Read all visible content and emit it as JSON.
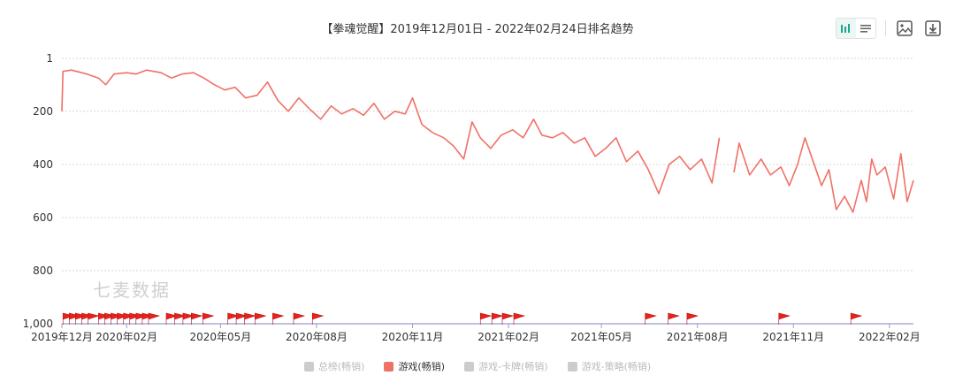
{
  "header": {
    "title": "【拳魂觉醒】2019年12月01日 - 2022年02月24日排名趋势",
    "icons": [
      "bar-chart-icon",
      "list-icon",
      "image-download-icon",
      "download-icon"
    ]
  },
  "watermark": "七麦数据",
  "legend": [
    {
      "label": "总榜(畅销)",
      "active": false
    },
    {
      "label": "游戏(畅销)",
      "active": true
    },
    {
      "label": "游戏-卡牌(畅销)",
      "active": false
    },
    {
      "label": "游戏-策略(畅销)",
      "active": false
    }
  ],
  "chart_data": {
    "type": "line",
    "title": "【拳魂觉醒】2019年12月01日 - 2022年02月24日排名趋势",
    "y_axis": {
      "reversed": true,
      "min": 1,
      "max": 1000,
      "ticks": [
        1,
        200,
        400,
        600,
        800,
        1000
      ],
      "tick_labels": [
        "1",
        "200",
        "400",
        "600",
        "800",
        "1,000"
      ]
    },
    "x_axis": {
      "ticks": [
        "2019-12-01",
        "2020-02-01",
        "2020-05-01",
        "2020-08-01",
        "2020-11-01",
        "2021-02-01",
        "2021-05-01",
        "2021-08-01",
        "2021-11-01",
        "2022-02-01"
      ],
      "tick_labels": [
        "2019年12月",
        "2020年02月",
        "2020年05月",
        "2020年08月",
        "2020年11月",
        "2021年02月",
        "2021年05月",
        "2021年08月",
        "2021年11月",
        "2022年02月"
      ],
      "range": [
        "2019-12-01",
        "2022-02-24"
      ]
    },
    "grid": true,
    "color": "#f07167",
    "series": [
      {
        "name": "游戏(畅销)",
        "points": [
          [
            "2019-12-01",
            200
          ],
          [
            "2019-12-02",
            50
          ],
          [
            "2019-12-10",
            45
          ],
          [
            "2019-12-25",
            60
          ],
          [
            "2020-01-05",
            75
          ],
          [
            "2020-01-12",
            100
          ],
          [
            "2020-01-20",
            60
          ],
          [
            "2020-02-01",
            55
          ],
          [
            "2020-02-10",
            60
          ],
          [
            "2020-02-20",
            45
          ],
          [
            "2020-03-05",
            55
          ],
          [
            "2020-03-15",
            75
          ],
          [
            "2020-03-25",
            60
          ],
          [
            "2020-04-05",
            55
          ],
          [
            "2020-04-15",
            75
          ],
          [
            "2020-04-25",
            100
          ],
          [
            "2020-05-05",
            120
          ],
          [
            "2020-05-15",
            110
          ],
          [
            "2020-05-25",
            150
          ],
          [
            "2020-06-05",
            140
          ],
          [
            "2020-06-15",
            90
          ],
          [
            "2020-06-25",
            160
          ],
          [
            "2020-07-05",
            200
          ],
          [
            "2020-07-15",
            150
          ],
          [
            "2020-07-25",
            190
          ],
          [
            "2020-08-05",
            230
          ],
          [
            "2020-08-15",
            180
          ],
          [
            "2020-08-25",
            210
          ],
          [
            "2020-09-05",
            190
          ],
          [
            "2020-09-15",
            215
          ],
          [
            "2020-09-25",
            170
          ],
          [
            "2020-10-05",
            230
          ],
          [
            "2020-10-15",
            200
          ],
          [
            "2020-10-25",
            210
          ],
          [
            "2020-11-01",
            150
          ],
          [
            "2020-11-10",
            250
          ],
          [
            "2020-11-20",
            280
          ],
          [
            "2020-12-01",
            300
          ],
          [
            "2020-12-10",
            330
          ],
          [
            "2020-12-20",
            380
          ],
          [
            "2020-12-28",
            240
          ],
          [
            "2021-01-05",
            300
          ],
          [
            "2021-01-15",
            340
          ],
          [
            "2021-01-25",
            290
          ],
          [
            "2021-02-05",
            270
          ],
          [
            "2021-02-15",
            300
          ],
          [
            "2021-02-25",
            230
          ],
          [
            "2021-03-05",
            290
          ],
          [
            "2021-03-15",
            300
          ],
          [
            "2021-03-25",
            280
          ],
          [
            "2021-04-05",
            320
          ],
          [
            "2021-04-15",
            300
          ],
          [
            "2021-04-25",
            370
          ],
          [
            "2021-05-05",
            340
          ],
          [
            "2021-05-15",
            300
          ],
          [
            "2021-05-25",
            390
          ],
          [
            "2021-06-05",
            350
          ],
          [
            "2021-06-15",
            420
          ],
          [
            "2021-06-25",
            510
          ],
          [
            "2021-07-05",
            400
          ],
          [
            "2021-07-15",
            370
          ],
          [
            "2021-07-25",
            420
          ],
          [
            "2021-08-05",
            380
          ],
          [
            "2021-08-15",
            470
          ],
          [
            "2021-08-22",
            300
          ]
        ]
      },
      {
        "name": "游戏(畅销)",
        "points": [
          [
            "2021-09-05",
            430
          ],
          [
            "2021-09-10",
            320
          ],
          [
            "2021-09-20",
            440
          ],
          [
            "2021-10-01",
            380
          ],
          [
            "2021-10-10",
            440
          ],
          [
            "2021-10-20",
            410
          ],
          [
            "2021-10-28",
            480
          ],
          [
            "2021-11-05",
            400
          ],
          [
            "2021-11-12",
            300
          ],
          [
            "2021-11-20",
            390
          ],
          [
            "2021-11-28",
            480
          ],
          [
            "2021-12-05",
            420
          ],
          [
            "2021-12-12",
            570
          ],
          [
            "2021-12-20",
            520
          ],
          [
            "2021-12-28",
            580
          ],
          [
            "2022-01-05",
            460
          ],
          [
            "2022-01-10",
            540
          ],
          [
            "2022-01-15",
            380
          ],
          [
            "2022-01-20",
            440
          ],
          [
            "2022-01-28",
            410
          ],
          [
            "2022-02-05",
            530
          ],
          [
            "2022-02-12",
            360
          ],
          [
            "2022-02-18",
            540
          ],
          [
            "2022-02-24",
            460
          ]
        ]
      }
    ],
    "event_flag_dates": [
      "2019-12-02",
      "2019-12-08",
      "2019-12-14",
      "2019-12-20",
      "2019-12-26",
      "2020-01-05",
      "2020-01-11",
      "2020-01-17",
      "2020-01-23",
      "2020-01-29",
      "2020-02-04",
      "2020-02-10",
      "2020-02-16",
      "2020-02-22",
      "2020-03-10",
      "2020-03-18",
      "2020-03-26",
      "2020-04-03",
      "2020-04-14",
      "2020-05-08",
      "2020-05-16",
      "2020-05-24",
      "2020-06-03",
      "2020-06-20",
      "2020-07-10",
      "2020-07-28",
      "2021-01-05",
      "2021-01-16",
      "2021-01-26",
      "2021-02-06",
      "2021-06-12",
      "2021-07-04",
      "2021-07-22",
      "2021-10-18",
      "2021-12-26"
    ]
  }
}
